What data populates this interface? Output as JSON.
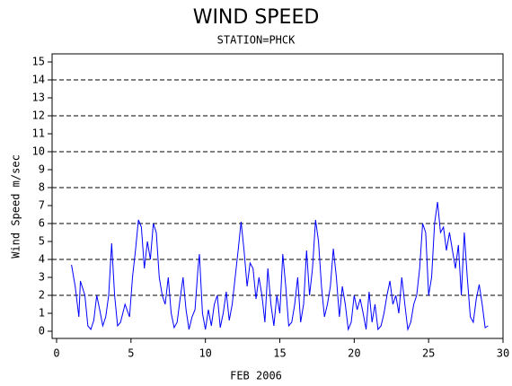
{
  "chart_data": {
    "type": "line",
    "title": "WIND SPEED",
    "subtitle": "STATION=PHCK",
    "x_label": "FEB 2006",
    "y_label": "Wind Speed m/sec",
    "color": "#0000ff",
    "xlim": [
      0,
      30
    ],
    "xticks": [
      0,
      5,
      10,
      15,
      20,
      25,
      30
    ],
    "ylim": [
      0,
      15
    ],
    "yticks": [
      0,
      1,
      2,
      3,
      4,
      5,
      6,
      7,
      8,
      9,
      10,
      11,
      12,
      13,
      14,
      15
    ],
    "ygrid": [
      2,
      4,
      6,
      8,
      10,
      12,
      14
    ],
    "x": [
      1.0,
      1.25,
      1.5,
      1.6,
      1.9,
      2.1,
      2.3,
      2.5,
      2.7,
      2.9,
      3.1,
      3.3,
      3.5,
      3.7,
      3.9,
      4.1,
      4.3,
      4.6,
      4.9,
      5.1,
      5.3,
      5.5,
      5.7,
      5.9,
      6.1,
      6.3,
      6.5,
      6.7,
      6.9,
      7.1,
      7.3,
      7.5,
      7.7,
      7.9,
      8.1,
      8.3,
      8.5,
      8.7,
      8.9,
      9.1,
      9.3,
      9.5,
      9.6,
      9.8,
      10.0,
      10.2,
      10.4,
      10.6,
      10.8,
      11.0,
      11.2,
      11.4,
      11.6,
      11.8,
      12.0,
      12.2,
      12.4,
      12.6,
      12.8,
      13.0,
      13.2,
      13.4,
      13.6,
      13.8,
      14.0,
      14.2,
      14.4,
      14.6,
      14.8,
      15.0,
      15.2,
      15.4,
      15.6,
      15.8,
      16.0,
      16.2,
      16.4,
      16.6,
      16.8,
      17.0,
      17.2,
      17.4,
      17.6,
      17.8,
      18.0,
      18.2,
      18.4,
      18.6,
      18.8,
      19.0,
      19.2,
      19.4,
      19.6,
      19.8,
      20.0,
      20.2,
      20.4,
      20.6,
      20.8,
      21.0,
      21.2,
      21.4,
      21.6,
      21.8,
      22.0,
      22.2,
      22.4,
      22.6,
      22.8,
      23.0,
      23.2,
      23.4,
      23.6,
      23.8,
      24.0,
      24.2,
      24.4,
      24.6,
      24.8,
      25.0,
      25.2,
      25.4,
      25.6,
      25.8,
      26.0,
      26.2,
      26.4,
      26.6,
      26.8,
      27.0,
      27.2,
      27.4,
      27.6,
      27.8,
      28.0,
      28.2,
      28.4,
      28.6,
      28.8,
      29.0
    ],
    "values": [
      3.7,
      2.5,
      0.8,
      2.8,
      2.0,
      0.3,
      0.1,
      0.6,
      2.0,
      1.2,
      0.3,
      0.8,
      2.0,
      4.9,
      2.0,
      0.3,
      0.5,
      1.5,
      0.8,
      3.0,
      4.5,
      6.2,
      5.8,
      3.5,
      5.0,
      4.0,
      6.0,
      5.5,
      3.0,
      2.0,
      1.5,
      3.0,
      1.0,
      0.2,
      0.5,
      1.8,
      3.0,
      1.2,
      0.1,
      0.8,
      1.2,
      3.5,
      4.3,
      1.0,
      0.1,
      1.2,
      0.3,
      1.5,
      2.0,
      0.2,
      1.0,
      2.2,
      0.6,
      1.5,
      3.0,
      4.5,
      6.1,
      4.5,
      2.5,
      3.8,
      3.5,
      1.8,
      3.0,
      2.0,
      0.5,
      3.5,
      1.5,
      0.3,
      2.0,
      1.0,
      4.3,
      2.5,
      0.3,
      0.5,
      1.5,
      3.0,
      0.5,
      1.5,
      4.5,
      2.0,
      3.5,
      6.2,
      5.0,
      2.5,
      0.8,
      1.5,
      2.5,
      4.6,
      3.0,
      0.8,
      2.5,
      1.5,
      0.1,
      0.5,
      2.0,
      1.2,
      1.8,
      1.0,
      0.1,
      2.2,
      0.5,
      1.5,
      0.1,
      0.3,
      1.0,
      2.0,
      2.8,
      1.5,
      2.0,
      1.0,
      3.0,
      1.5,
      0.1,
      0.5,
      1.5,
      2.0,
      3.5,
      6.0,
      5.5,
      2.0,
      3.0,
      6.0,
      7.2,
      5.5,
      5.8,
      4.5,
      5.5,
      4.5,
      3.5,
      4.8,
      2.0,
      5.5,
      3.0,
      0.8,
      0.5,
      1.8,
      2.6,
      1.5,
      0.2,
      0.3
    ]
  }
}
